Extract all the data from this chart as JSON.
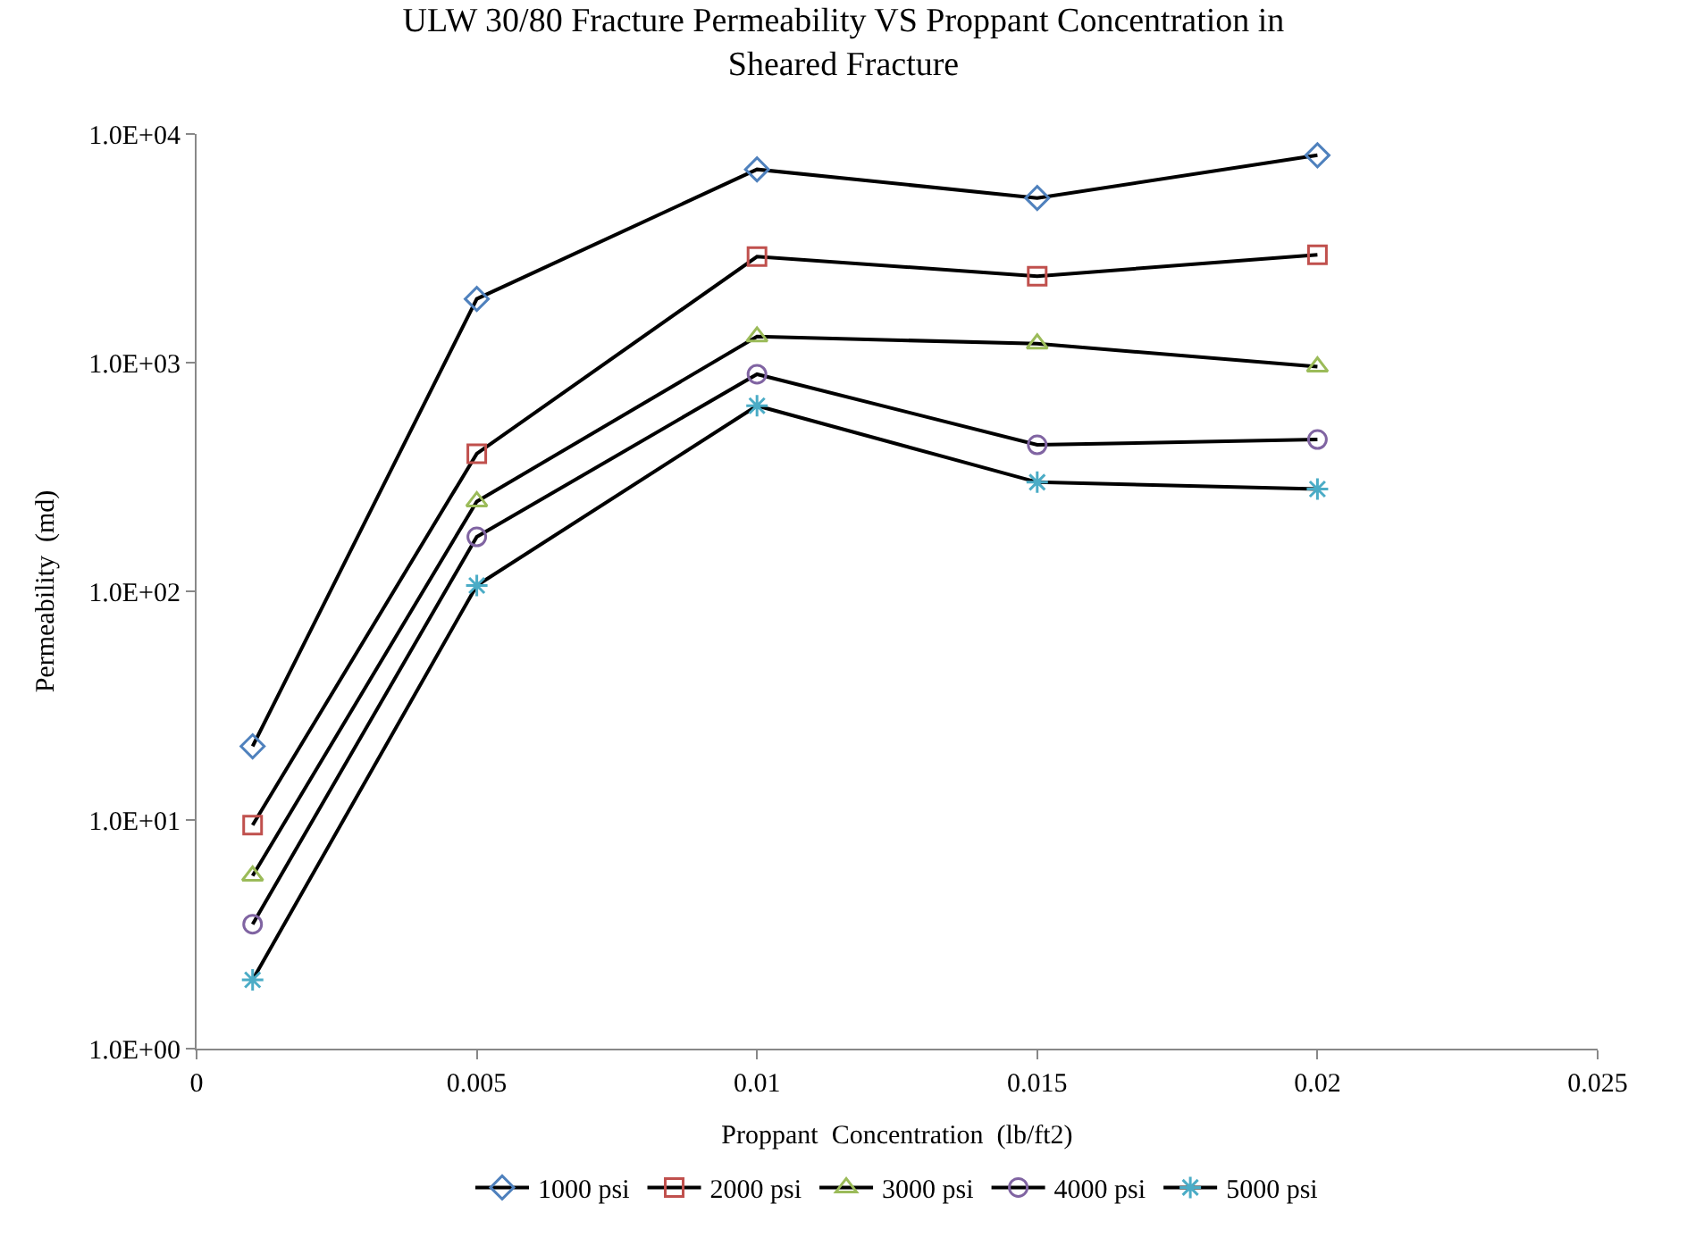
{
  "chart_data": {
    "type": "line",
    "title": "ULW 30/80 Fracture Permeability VS Proppant Concentration in\nSheared Fracture",
    "xlabel": "Proppant  Concentration  (lb/ft2)",
    "ylabel": "Permeability  (md)",
    "x": [
      0.001,
      0.005,
      0.01,
      0.015,
      0.02
    ],
    "series": [
      {
        "name": "1000 psi",
        "color": "#4f81bd",
        "marker": "diamond",
        "values": [
          21,
          1900,
          7000,
          5250,
          8070
        ]
      },
      {
        "name": "2000 psi",
        "color": "#c0504d",
        "marker": "square",
        "values": [
          9.5,
          400,
          2910,
          2390,
          2960
        ]
      },
      {
        "name": "3000 psi",
        "color": "#9bbb59",
        "marker": "triangle",
        "values": [
          5.7,
          247,
          1300,
          1210,
          960
        ]
      },
      {
        "name": "4000 psi",
        "color": "#8064a2",
        "marker": "circle",
        "values": [
          3.5,
          173,
          890,
          437,
          461
        ]
      },
      {
        "name": "5000 psi",
        "color": "#4bacc6",
        "marker": "cross",
        "values": [
          2.0,
          106,
          648,
          300,
          280
        ]
      }
    ],
    "log": "y",
    "xlim": [
      0,
      0.025
    ],
    "xticks": [
      0,
      0.005,
      0.01,
      0.015,
      0.02,
      0.025
    ],
    "ylim": [
      1,
      10000
    ],
    "yticks": [
      {
        "value": 1,
        "label": "1.0E+00"
      },
      {
        "value": 10,
        "label": "1.0E+01"
      },
      {
        "value": 100,
        "label": "1.0E+02"
      },
      {
        "value": 1000,
        "label": "1.0E+03"
      },
      {
        "value": 10000,
        "label": "1.0E+04"
      }
    ],
    "legend": "bottom",
    "line_style": "solid"
  }
}
